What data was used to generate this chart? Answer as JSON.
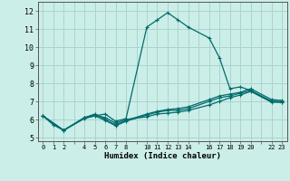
{
  "title": "",
  "xlabel": "Humidex (Indice chaleur)",
  "bg_color": "#cceee8",
  "grid_color": "#aad4ce",
  "line_color": "#006b6b",
  "xlim": [
    -0.5,
    23.5
  ],
  "ylim": [
    4.8,
    12.5
  ],
  "xticks": [
    0,
    1,
    2,
    4,
    5,
    6,
    7,
    8,
    10,
    11,
    12,
    13,
    14,
    16,
    17,
    18,
    19,
    20,
    22,
    23
  ],
  "yticks": [
    5,
    6,
    7,
    8,
    9,
    10,
    11,
    12
  ],
  "line1_x": [
    0,
    1,
    2,
    4,
    5,
    6,
    7,
    8,
    10,
    11,
    12,
    13,
    14,
    16,
    17,
    18,
    19,
    20,
    22,
    23
  ],
  "line1_y": [
    6.2,
    5.7,
    5.4,
    6.1,
    6.2,
    6.3,
    5.9,
    6.05,
    11.1,
    11.5,
    11.9,
    11.5,
    11.1,
    10.5,
    9.4,
    7.7,
    7.8,
    7.6,
    7.0,
    6.95
  ],
  "line2_x": [
    0,
    2,
    4,
    5,
    6,
    7,
    8,
    10,
    11,
    12,
    13,
    14,
    16,
    17,
    18,
    19,
    20,
    22,
    23
  ],
  "line2_y": [
    6.2,
    5.4,
    6.1,
    6.25,
    6.1,
    5.8,
    6.0,
    6.15,
    6.3,
    6.35,
    6.4,
    6.5,
    6.8,
    7.0,
    7.2,
    7.35,
    7.55,
    6.95,
    6.95
  ],
  "line3_x": [
    0,
    2,
    4,
    5,
    6,
    7,
    8,
    10,
    11,
    12,
    13,
    14,
    16,
    17,
    18,
    19,
    20,
    22,
    23
  ],
  "line3_y": [
    6.2,
    5.4,
    6.05,
    6.2,
    5.95,
    5.65,
    5.9,
    6.25,
    6.4,
    6.5,
    6.5,
    6.6,
    7.0,
    7.2,
    7.3,
    7.45,
    7.6,
    7.0,
    7.0
  ],
  "line4_x": [
    0,
    2,
    4,
    5,
    6,
    7,
    8,
    10,
    11,
    12,
    13,
    14,
    16,
    17,
    18,
    19,
    20,
    22,
    23
  ],
  "line4_y": [
    6.2,
    5.4,
    6.1,
    6.3,
    6.0,
    5.7,
    5.95,
    6.3,
    6.45,
    6.55,
    6.6,
    6.7,
    7.1,
    7.3,
    7.4,
    7.5,
    7.7,
    7.1,
    7.05
  ]
}
